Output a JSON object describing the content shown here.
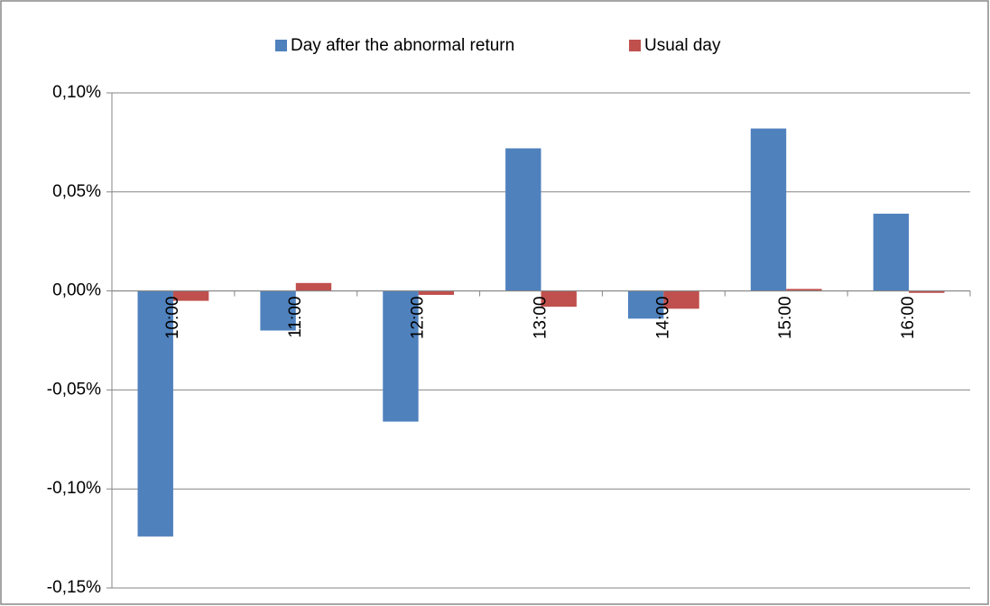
{
  "chart_data": {
    "type": "bar",
    "categories": [
      "10:00",
      "11:00",
      "12:00",
      "13:00",
      "14:00",
      "15:00",
      "16:00"
    ],
    "series": [
      {
        "name": "Day after the abnormal return",
        "color": "#4f81bd",
        "values": [
          -0.124,
          -0.02,
          -0.066,
          0.072,
          -0.014,
          0.082,
          0.039
        ]
      },
      {
        "name": "Usual day",
        "color": "#c0504d",
        "values": [
          -0.005,
          0.004,
          -0.002,
          -0.008,
          -0.009,
          0.001,
          -0.001
        ]
      }
    ],
    "ylim": [
      -0.15,
      0.1
    ],
    "yticks": [
      {
        "value": -0.15,
        "label": "-0,15%"
      },
      {
        "value": -0.1,
        "label": "-0,10%"
      },
      {
        "value": -0.05,
        "label": "-0,05%"
      },
      {
        "value": 0,
        "label": "0,00%"
      },
      {
        "value": 0.05,
        "label": "0,05%"
      },
      {
        "value": 0.1,
        "label": "0,10%"
      }
    ],
    "grid": true,
    "legend": "top"
  }
}
